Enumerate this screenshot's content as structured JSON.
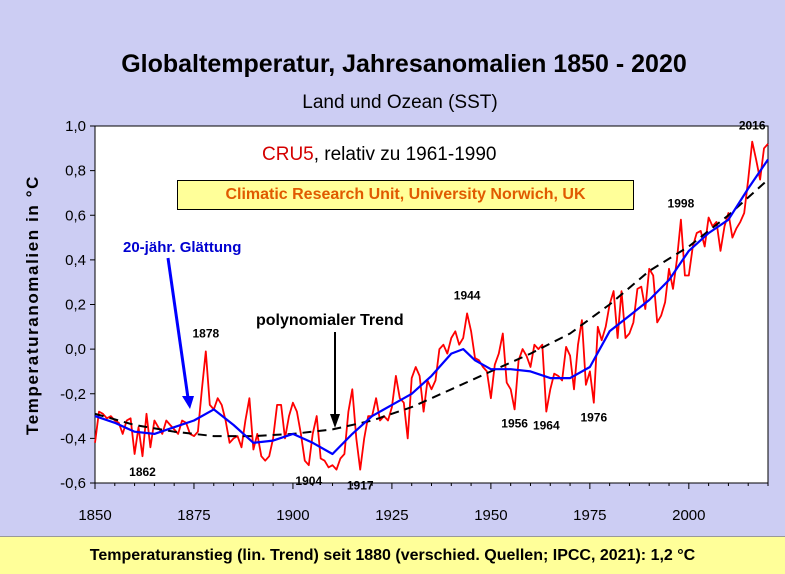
{
  "chart_data": {
    "type": "line",
    "title": "Globaltemperatur, Jahresanomalien 1850 - 2020",
    "subtitle": "Land und Ozean (SST)",
    "ylabel": "Temperaturanomalien in °C",
    "xlabel": "",
    "xlim": [
      1850,
      2020
    ],
    "ylim": [
      -0.6,
      1.0
    ],
    "x_ticks": [
      1850,
      1875,
      1900,
      1925,
      1950,
      1975,
      2000
    ],
    "y_ticks": [
      1.0,
      0.8,
      0.6,
      0.4,
      0.2,
      0.0,
      -0.2,
      -0.4,
      -0.6
    ],
    "y_tick_labels": [
      "1,0",
      "0,8",
      "0,6",
      "0,4",
      "0,2",
      "0,0",
      "-0,2",
      "-0,4",
      "-0,6"
    ],
    "grid": false,
    "dataset_label": "CRU5",
    "dataset_label_rest": ", relativ zu 1961-1990",
    "source": "Climatic Research Unit, University Norwich, UK",
    "footer": "Temperaturanstieg (lin. Trend) seit 1880 (verschied. Quellen; IPCC,  2021): 1,2 °C",
    "colors": {
      "annual": "#ff0000",
      "smooth": "#0000ff",
      "trend": "#000000",
      "background": "#cccdf3",
      "plot": "#ffffff"
    },
    "series": [
      {
        "name": "annual",
        "style": "solid",
        "points": [
          [
            1850,
            -0.42
          ],
          [
            1851,
            -0.28
          ],
          [
            1852,
            -0.29
          ],
          [
            1853,
            -0.31
          ],
          [
            1854,
            -0.3
          ],
          [
            1855,
            -0.32
          ],
          [
            1856,
            -0.33
          ],
          [
            1857,
            -0.38
          ],
          [
            1858,
            -0.32
          ],
          [
            1859,
            -0.31
          ],
          [
            1860,
            -0.47
          ],
          [
            1861,
            -0.35
          ],
          [
            1862,
            -0.48
          ],
          [
            1863,
            -0.29
          ],
          [
            1864,
            -0.44
          ],
          [
            1865,
            -0.32
          ],
          [
            1866,
            -0.35
          ],
          [
            1867,
            -0.38
          ],
          [
            1868,
            -0.32
          ],
          [
            1869,
            -0.34
          ],
          [
            1870,
            -0.36
          ],
          [
            1871,
            -0.38
          ],
          [
            1872,
            -0.32
          ],
          [
            1873,
            -0.33
          ],
          [
            1874,
            -0.38
          ],
          [
            1875,
            -0.39
          ],
          [
            1876,
            -0.37
          ],
          [
            1877,
            -0.18
          ],
          [
            1878,
            -0.01
          ],
          [
            1879,
            -0.25
          ],
          [
            1880,
            -0.27
          ],
          [
            1881,
            -0.22
          ],
          [
            1882,
            -0.25
          ],
          [
            1883,
            -0.32
          ],
          [
            1884,
            -0.42
          ],
          [
            1885,
            -0.4
          ],
          [
            1886,
            -0.39
          ],
          [
            1887,
            -0.44
          ],
          [
            1888,
            -0.32
          ],
          [
            1889,
            -0.22
          ],
          [
            1890,
            -0.45
          ],
          [
            1891,
            -0.38
          ],
          [
            1892,
            -0.48
          ],
          [
            1893,
            -0.5
          ],
          [
            1894,
            -0.48
          ],
          [
            1895,
            -0.4
          ],
          [
            1896,
            -0.25
          ],
          [
            1897,
            -0.25
          ],
          [
            1898,
            -0.4
          ],
          [
            1899,
            -0.3
          ],
          [
            1900,
            -0.24
          ],
          [
            1901,
            -0.28
          ],
          [
            1902,
            -0.38
          ],
          [
            1903,
            -0.5
          ],
          [
            1904,
            -0.52
          ],
          [
            1905,
            -0.38
          ],
          [
            1906,
            -0.3
          ],
          [
            1907,
            -0.49
          ],
          [
            1908,
            -0.5
          ],
          [
            1909,
            -0.53
          ],
          [
            1910,
            -0.52
          ],
          [
            1911,
            -0.54
          ],
          [
            1912,
            -0.49
          ],
          [
            1913,
            -0.47
          ],
          [
            1914,
            -0.28
          ],
          [
            1915,
            -0.18
          ],
          [
            1916,
            -0.4
          ],
          [
            1917,
            -0.54
          ],
          [
            1918,
            -0.4
          ],
          [
            1919,
            -0.3
          ],
          [
            1920,
            -0.3
          ],
          [
            1921,
            -0.22
          ],
          [
            1922,
            -0.32
          ],
          [
            1923,
            -0.3
          ],
          [
            1924,
            -0.32
          ],
          [
            1925,
            -0.26
          ],
          [
            1926,
            -0.12
          ],
          [
            1927,
            -0.22
          ],
          [
            1928,
            -0.24
          ],
          [
            1929,
            -0.4
          ],
          [
            1930,
            -0.13
          ],
          [
            1931,
            -0.08
          ],
          [
            1932,
            -0.12
          ],
          [
            1933,
            -0.28
          ],
          [
            1934,
            -0.14
          ],
          [
            1935,
            -0.18
          ],
          [
            1936,
            -0.14
          ],
          [
            1937,
            0.0
          ],
          [
            1938,
            0.02
          ],
          [
            1939,
            -0.02
          ],
          [
            1940,
            0.05
          ],
          [
            1941,
            0.08
          ],
          [
            1942,
            0.02
          ],
          [
            1943,
            0.05
          ],
          [
            1944,
            0.16
          ],
          [
            1945,
            0.08
          ],
          [
            1946,
            -0.04
          ],
          [
            1947,
            -0.05
          ],
          [
            1948,
            -0.08
          ],
          [
            1949,
            -0.1
          ],
          [
            1950,
            -0.22
          ],
          [
            1951,
            -0.07
          ],
          [
            1952,
            -0.02
          ],
          [
            1953,
            0.07
          ],
          [
            1954,
            -0.15
          ],
          [
            1955,
            -0.18
          ],
          [
            1956,
            -0.27
          ],
          [
            1957,
            -0.05
          ],
          [
            1958,
            0.0
          ],
          [
            1959,
            -0.03
          ],
          [
            1960,
            -0.08
          ],
          [
            1961,
            0.02
          ],
          [
            1962,
            0.0
          ],
          [
            1963,
            0.02
          ],
          [
            1964,
            -0.28
          ],
          [
            1965,
            -0.18
          ],
          [
            1966,
            -0.11
          ],
          [
            1967,
            -0.12
          ],
          [
            1968,
            -0.14
          ],
          [
            1969,
            0.01
          ],
          [
            1970,
            -0.03
          ],
          [
            1971,
            -0.18
          ],
          [
            1972,
            0.02
          ],
          [
            1973,
            0.13
          ],
          [
            1974,
            -0.16
          ],
          [
            1975,
            -0.1
          ],
          [
            1976,
            -0.24
          ],
          [
            1977,
            0.1
          ],
          [
            1978,
            0.04
          ],
          [
            1979,
            0.1
          ],
          [
            1980,
            0.2
          ],
          [
            1981,
            0.26
          ],
          [
            1982,
            0.05
          ],
          [
            1983,
            0.26
          ],
          [
            1984,
            0.05
          ],
          [
            1985,
            0.07
          ],
          [
            1986,
            0.12
          ],
          [
            1987,
            0.27
          ],
          [
            1988,
            0.28
          ],
          [
            1989,
            0.18
          ],
          [
            1990,
            0.36
          ],
          [
            1991,
            0.33
          ],
          [
            1992,
            0.12
          ],
          [
            1993,
            0.15
          ],
          [
            1994,
            0.21
          ],
          [
            1995,
            0.36
          ],
          [
            1996,
            0.27
          ],
          [
            1997,
            0.4
          ],
          [
            1998,
            0.58
          ],
          [
            1999,
            0.33
          ],
          [
            2000,
            0.33
          ],
          [
            2001,
            0.46
          ],
          [
            2002,
            0.52
          ],
          [
            2003,
            0.53
          ],
          [
            2004,
            0.46
          ],
          [
            2005,
            0.59
          ],
          [
            2006,
            0.55
          ],
          [
            2007,
            0.57
          ],
          [
            2008,
            0.44
          ],
          [
            2009,
            0.55
          ],
          [
            2010,
            0.61
          ],
          [
            2011,
            0.5
          ],
          [
            2012,
            0.54
          ],
          [
            2013,
            0.57
          ],
          [
            2014,
            0.61
          ],
          [
            2015,
            0.76
          ],
          [
            2016,
            0.93
          ],
          [
            2017,
            0.85
          ],
          [
            2018,
            0.76
          ],
          [
            2019,
            0.9
          ],
          [
            2020,
            0.92
          ]
        ]
      },
      {
        "name": "20-jähr. Glättung",
        "style": "solid",
        "points": [
          [
            1850,
            -0.3
          ],
          [
            1855,
            -0.33
          ],
          [
            1860,
            -0.37
          ],
          [
            1865,
            -0.38
          ],
          [
            1870,
            -0.35
          ],
          [
            1875,
            -0.32
          ],
          [
            1880,
            -0.27
          ],
          [
            1885,
            -0.34
          ],
          [
            1890,
            -0.42
          ],
          [
            1895,
            -0.41
          ],
          [
            1900,
            -0.38
          ],
          [
            1905,
            -0.42
          ],
          [
            1910,
            -0.47
          ],
          [
            1915,
            -0.38
          ],
          [
            1920,
            -0.3
          ],
          [
            1925,
            -0.25
          ],
          [
            1930,
            -0.2
          ],
          [
            1935,
            -0.12
          ],
          [
            1940,
            -0.02
          ],
          [
            1943,
            0.0
          ],
          [
            1946,
            -0.05
          ],
          [
            1950,
            -0.09
          ],
          [
            1955,
            -0.09
          ],
          [
            1960,
            -0.1
          ],
          [
            1965,
            -0.13
          ],
          [
            1970,
            -0.13
          ],
          [
            1975,
            -0.08
          ],
          [
            1980,
            0.08
          ],
          [
            1985,
            0.15
          ],
          [
            1990,
            0.22
          ],
          [
            1995,
            0.31
          ],
          [
            2000,
            0.44
          ],
          [
            2005,
            0.52
          ],
          [
            2010,
            0.58
          ],
          [
            2015,
            0.72
          ],
          [
            2020,
            0.85
          ]
        ]
      },
      {
        "name": "polynomialer Trend",
        "style": "dashed",
        "points": [
          [
            1850,
            -0.29
          ],
          [
            1860,
            -0.34
          ],
          [
            1870,
            -0.37
          ],
          [
            1880,
            -0.39
          ],
          [
            1890,
            -0.39
          ],
          [
            1900,
            -0.38
          ],
          [
            1910,
            -0.36
          ],
          [
            1920,
            -0.32
          ],
          [
            1930,
            -0.26
          ],
          [
            1940,
            -0.18
          ],
          [
            1950,
            -0.1
          ],
          [
            1960,
            -0.02
          ],
          [
            1970,
            0.07
          ],
          [
            1980,
            0.2
          ],
          [
            1990,
            0.35
          ],
          [
            2000,
            0.46
          ],
          [
            2010,
            0.6
          ],
          [
            2020,
            0.76
          ]
        ]
      }
    ],
    "annotations": [
      {
        "text": "2016",
        "x": 2016,
        "y": 0.93
      },
      {
        "text": "1998",
        "x": 1998,
        "y": 0.58
      },
      {
        "text": "1944",
        "x": 1944,
        "y": 0.16
      },
      {
        "text": "1878",
        "x": 1878,
        "y": -0.01
      },
      {
        "text": "1862",
        "x": 1862,
        "y": -0.48
      },
      {
        "text": "1904",
        "x": 1904,
        "y": -0.52
      },
      {
        "text": "1917",
        "x": 1917,
        "y": -0.54
      },
      {
        "text": "1956",
        "x": 1956,
        "y": -0.27
      },
      {
        "text": "1964",
        "x": 1964,
        "y": -0.28
      },
      {
        "text": "1976",
        "x": 1976,
        "y": -0.24
      }
    ],
    "label_smooth": "20-jähr. Glättung",
    "label_trend": "polynomialer Trend"
  }
}
